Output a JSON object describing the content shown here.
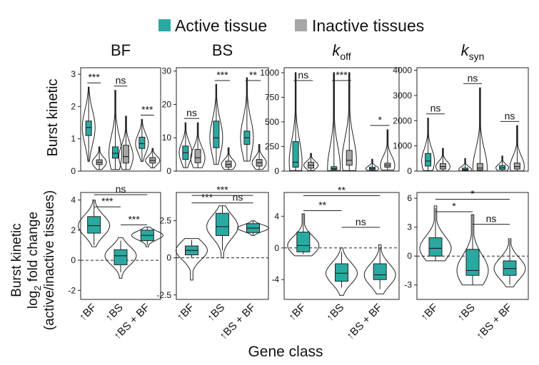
{
  "legend": {
    "active": {
      "label": "Active tissue",
      "color": "#2aa9a2"
    },
    "inactive": {
      "label": "Inactive tissues",
      "color": "#a6a6a6"
    }
  },
  "y_labels": {
    "top": "Burst kinetic",
    "bottom_lines": [
      "Burst kinetic",
      "log",
      "2",
      " fold change",
      "(active/inactive tissues)"
    ]
  },
  "x_label": "Gene class",
  "gene_classes": [
    "↑BF",
    "↑BS",
    "↑BS + BF"
  ],
  "chart_data": [
    {
      "type": "violin-box",
      "panel": "top",
      "title": "BF",
      "ylim": [
        0,
        3.2
      ],
      "yticks": [
        0,
        1,
        2,
        3
      ],
      "groups": [
        {
          "category": "↑BF",
          "sig": "***",
          "active": {
            "min": 0.3,
            "q1": 1.1,
            "median": 1.35,
            "q3": 1.55,
            "max": 2.6
          },
          "inactive": {
            "min": 0.05,
            "q1": 0.2,
            "median": 0.27,
            "q3": 0.35,
            "max": 0.75
          }
        },
        {
          "category": "↑BS",
          "sig": "ns",
          "active": {
            "min": 0.05,
            "q1": 0.4,
            "median": 0.55,
            "q3": 0.75,
            "max": 2.5
          },
          "inactive": {
            "min": 0.05,
            "q1": 0.25,
            "median": 0.45,
            "q3": 0.8,
            "max": 1.7
          }
        },
        {
          "category": "↑BS + BF",
          "sig": "***",
          "active": {
            "min": 0.3,
            "q1": 0.7,
            "median": 0.85,
            "q3": 1.05,
            "max": 1.6
          },
          "inactive": {
            "min": 0.1,
            "q1": 0.25,
            "median": 0.33,
            "q3": 0.42,
            "max": 0.7
          }
        }
      ]
    },
    {
      "type": "violin-box",
      "panel": "top",
      "title": "BS",
      "ylim": [
        0,
        31
      ],
      "yticks": [
        0,
        10,
        20,
        30
      ],
      "groups": [
        {
          "category": "↑BF",
          "sig": "ns",
          "active": {
            "min": 1,
            "q1": 3.5,
            "median": 5.5,
            "q3": 7.5,
            "max": 14.5
          },
          "inactive": {
            "min": 1,
            "q1": 2.5,
            "median": 4,
            "q3": 6.5,
            "max": 14.5
          }
        },
        {
          "category": "↑BS",
          "sig": "***",
          "active": {
            "min": 2,
            "q1": 7,
            "median": 10,
            "q3": 15,
            "max": 26
          },
          "inactive": {
            "min": 0.5,
            "q1": 1.2,
            "median": 2,
            "q3": 3,
            "max": 7
          }
        },
        {
          "category": "↑BS + BF",
          "sig": "**",
          "active": {
            "min": 3,
            "q1": 8,
            "median": 10,
            "q3": 12,
            "max": 28
          },
          "inactive": {
            "min": 0.5,
            "q1": 1.5,
            "median": 2.5,
            "q3": 3.5,
            "max": 8
          }
        }
      ]
    },
    {
      "type": "violin-box",
      "panel": "top",
      "title": "k",
      "title_sub": "off",
      "ylim": [
        0,
        1050
      ],
      "yticks": [
        0,
        250,
        500,
        750,
        1000
      ],
      "groups": [
        {
          "category": "↑BF",
          "sig": "ns",
          "active": {
            "min": 5,
            "q1": 40,
            "median": 90,
            "q3": 300,
            "max": 1000
          },
          "inactive": {
            "min": 5,
            "q1": 30,
            "median": 60,
            "q3": 90,
            "max": 180
          }
        },
        {
          "category": "↑BS",
          "sig": "***",
          "active": {
            "min": 5,
            "q1": 15,
            "median": 25,
            "q3": 45,
            "max": 1000
          },
          "inactive": {
            "min": 5,
            "q1": 60,
            "median": 110,
            "q3": 210,
            "max": 1000
          }
        },
        {
          "category": "↑BS + BF",
          "sig": "*",
          "active": {
            "min": 5,
            "q1": 15,
            "median": 25,
            "q3": 40,
            "max": 120
          },
          "inactive": {
            "min": 10,
            "q1": 40,
            "median": 60,
            "q3": 80,
            "max": 420
          }
        }
      ]
    },
    {
      "type": "violin-box",
      "panel": "top",
      "title": "k",
      "title_sub": "syn",
      "ylim": [
        0,
        4100
      ],
      "yticks": [
        0,
        1000,
        2000,
        3000,
        4000
      ],
      "groups": [
        {
          "category": "↑BF",
          "sig": "ns",
          "active": {
            "min": 20,
            "q1": 200,
            "median": 400,
            "q3": 700,
            "max": 2100
          },
          "inactive": {
            "min": 10,
            "q1": 80,
            "median": 180,
            "q3": 300,
            "max": 900
          }
        },
        {
          "category": "↑BS",
          "sig": "ns",
          "active": {
            "min": 5,
            "q1": 30,
            "median": 60,
            "q3": 120,
            "max": 500
          },
          "inactive": {
            "min": 5,
            "q1": 40,
            "median": 120,
            "q3": 300,
            "max": 3300
          }
        },
        {
          "category": "↑BS + BF",
          "sig": "ns",
          "active": {
            "min": 5,
            "q1": 60,
            "median": 130,
            "q3": 220,
            "max": 600
          },
          "inactive": {
            "min": 10,
            "q1": 80,
            "median": 180,
            "q3": 320,
            "max": 1800
          }
        }
      ]
    },
    {
      "type": "violin-box",
      "panel": "bottom",
      "title": "BF",
      "ylim": [
        -2.6,
        4.5
      ],
      "yticks": [
        -2,
        0,
        2,
        4
      ],
      "zero_line": true,
      "comparisons": [
        {
          "from": 0,
          "to": 1,
          "label": "***",
          "y": 3.55
        },
        {
          "from": 1,
          "to": 2,
          "label": "***",
          "y": 2.35
        },
        {
          "from": 0,
          "to": 2,
          "label": "ns",
          "y": 4.35
        }
      ],
      "groups": [
        {
          "category": "↑BF",
          "active": {
            "min": 1.0,
            "q1": 1.8,
            "median": 2.3,
            "q3": 2.9,
            "max": 4.0,
            "vmin": 0.9,
            "vmax": 4.0
          }
        },
        {
          "category": "↑BS",
          "active": {
            "min": -0.8,
            "q1": -0.3,
            "median": 0.3,
            "q3": 0.7,
            "max": 1.3,
            "vmin": -1.2,
            "vmax": 1.5
          }
        },
        {
          "category": "↑BS + BF",
          "active": {
            "min": 1.0,
            "q1": 1.3,
            "median": 1.65,
            "q3": 2.0,
            "max": 2.2,
            "vmin": 0.9,
            "vmax": 2.2
          }
        }
      ]
    },
    {
      "type": "violin-box",
      "panel": "bottom",
      "title": "BS",
      "ylim": [
        -2.8,
        4.4
      ],
      "yticks": [
        -2.5,
        0,
        2.5
      ],
      "zero_line": true,
      "comparisons": [
        {
          "from": 0,
          "to": 1,
          "label": "***",
          "y": 3.7
        },
        {
          "from": 1,
          "to": 2,
          "label": "ns",
          "y": 3.7
        },
        {
          "from": 0,
          "to": 2,
          "label": "***",
          "y": 4.2
        }
      ],
      "groups": [
        {
          "category": "↑BF",
          "active": {
            "min": 0.0,
            "q1": 0.2,
            "median": 0.5,
            "q3": 0.8,
            "max": 1.2,
            "vmin": -1.5,
            "vmax": 1.3
          }
        },
        {
          "category": "↑BS",
          "active": {
            "min": 0.5,
            "q1": 1.5,
            "median": 2.1,
            "q3": 3.0,
            "max": 3.5,
            "vmin": 0.0,
            "vmax": 3.5
          }
        },
        {
          "category": "↑BS + BF",
          "active": {
            "min": 1.5,
            "q1": 1.7,
            "median": 2.0,
            "q3": 2.3,
            "max": 2.5,
            "vmin": 1.5,
            "vmax": 2.5
          }
        }
      ]
    },
    {
      "type": "violin-box",
      "panel": "bottom",
      "title": "k",
      "title_sub": "off",
      "ylim": [
        -6.5,
        7
      ],
      "yticks": [
        -4,
        0,
        4
      ],
      "zero_line": true,
      "comparisons": [
        {
          "from": 0,
          "to": 1,
          "label": "**",
          "y": 4.7
        },
        {
          "from": 1,
          "to": 2,
          "label": "ns",
          "y": 2.6
        },
        {
          "from": 0,
          "to": 2,
          "label": "**",
          "y": 6.6
        }
      ],
      "groups": [
        {
          "category": "↑BF",
          "active": {
            "min": -0.8,
            "q1": -0.5,
            "median": 0.3,
            "q3": 2.0,
            "max": 4.3,
            "vmin": -1.0,
            "vmax": 4.3
          }
        },
        {
          "category": "↑BS",
          "active": {
            "min": -5.0,
            "q1": -4.2,
            "median": -3.2,
            "q3": -2.0,
            "max": -0.5,
            "vmin": -6.0,
            "vmax": 0.0
          }
        },
        {
          "category": "↑BS + BF",
          "active": {
            "min": -5.2,
            "q1": -4.0,
            "median": -3.4,
            "q3": -2.0,
            "max": 0.0,
            "vmin": -5.8,
            "vmax": 0.4
          }
        }
      ]
    },
    {
      "type": "violin-box",
      "panel": "bottom",
      "title": "k",
      "title_sub": "syn",
      "ylim": [
        -4.5,
        6.6
      ],
      "yticks": [
        -3,
        0,
        3,
        6
      ],
      "zero_line": true,
      "comparisons": [
        {
          "from": 0,
          "to": 1,
          "label": "*",
          "y": 4.6
        },
        {
          "from": 1,
          "to": 2,
          "label": "ns",
          "y": 3.3
        },
        {
          "from": 0,
          "to": 2,
          "label": "*",
          "y": 5.9
        }
      ],
      "groups": [
        {
          "category": "↑BF",
          "active": {
            "min": -0.5,
            "q1": 0.0,
            "median": 0.8,
            "q3": 1.9,
            "max": 5.0,
            "vmin": -0.5,
            "vmax": 5.2
          }
        },
        {
          "category": "↑BS",
          "active": {
            "min": -3.0,
            "q1": -2.0,
            "median": -1.5,
            "q3": 0.7,
            "max": 4.3,
            "vmin": -3.0,
            "vmax": 4.3
          }
        },
        {
          "category": "↑BS + BF",
          "active": {
            "min": -3.0,
            "q1": -2.0,
            "median": -1.3,
            "q3": -0.5,
            "max": 1.7,
            "vmin": -3.2,
            "vmax": 1.8
          }
        }
      ]
    }
  ]
}
